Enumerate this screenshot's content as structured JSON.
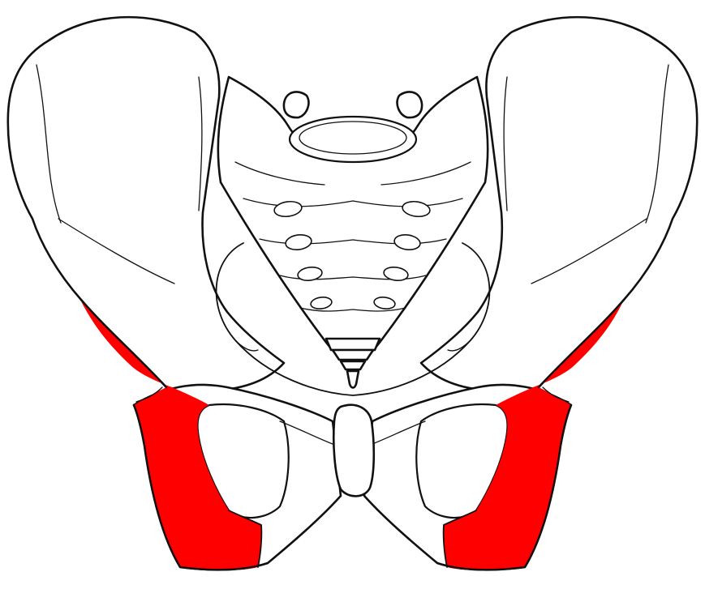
{
  "figure": {
    "subject": "pelvis-anterior-view",
    "highlight_color": "#ff0000",
    "outline_color": "#111111",
    "fill_color": "#ffffff"
  }
}
